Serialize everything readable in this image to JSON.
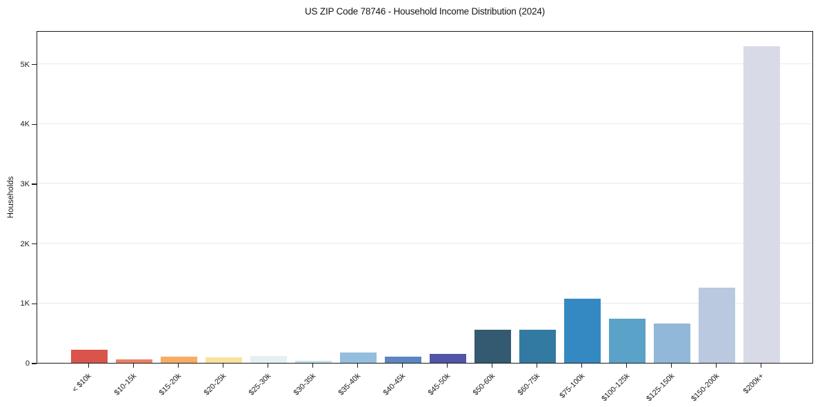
{
  "figure": {
    "background": "#ffffff",
    "axis_color": "#1a1a1a",
    "gridline_color": "#e9e9ed"
  },
  "chart_data": {
    "type": "bar",
    "title": "US ZIP Code 78746 - Household Income Distribution (2024)",
    "xlabel": "",
    "ylabel": "Households",
    "categories": [
      "< $10k",
      "$10-15k",
      "$15-20k",
      "$20-25k",
      "$25-30k",
      "$30-35k",
      "$35-40k",
      "$40-45k",
      "$45-50k",
      "$50-60k",
      "$60-75k",
      "$75-100k",
      "$100-125k",
      "$125-150k",
      "$150-200k",
      "$200k+"
    ],
    "values": [
      215,
      62,
      102,
      88,
      120,
      40,
      172,
      100,
      148,
      550,
      558,
      1070,
      735,
      660,
      1255,
      5290
    ],
    "bar_colors": [
      "#d9544a",
      "#ec8164",
      "#f6ac63",
      "#fae29e",
      "#e4f0f2",
      "#c8dfee",
      "#94bedd",
      "#5d85c0",
      "#5254a8",
      "#335a70",
      "#337aa3",
      "#3489c2",
      "#5ba2c8",
      "#91b7d9",
      "#bac9df",
      "#d8dae7"
    ],
    "yticks": {
      "labels": [
        "0",
        "1K",
        "2K",
        "3K",
        "4K",
        "5K"
      ],
      "values": [
        0,
        1000,
        2000,
        3000,
        4000,
        5000
      ]
    },
    "ylim": [
      0,
      5560
    ],
    "grid": "horizontal",
    "legend": "none"
  }
}
